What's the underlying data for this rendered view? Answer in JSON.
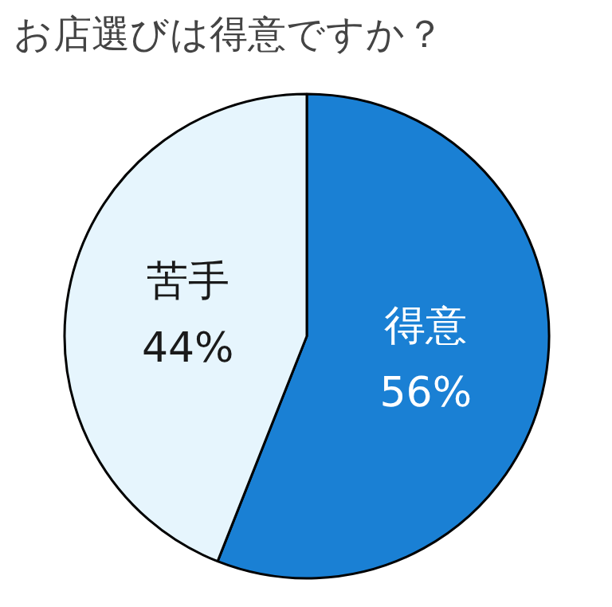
{
  "chart_data": {
    "type": "pie",
    "title": "お店選びは得意ですか？",
    "categories": [
      "得意",
      "苦手"
    ],
    "values": [
      56,
      44
    ],
    "colors": [
      "#1a80d4",
      "#e6f5fd"
    ],
    "value_labels": [
      "56%",
      "44%"
    ]
  }
}
